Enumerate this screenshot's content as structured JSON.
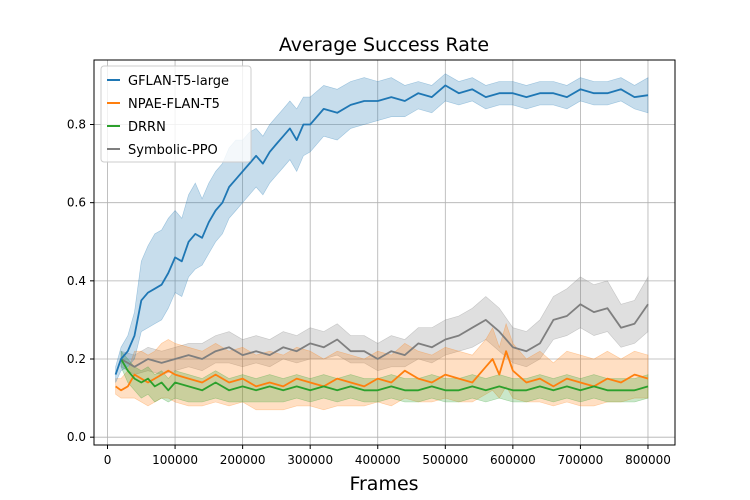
{
  "chart_data": {
    "type": "line",
    "title": "Average Success Rate",
    "xlabel": "Frames",
    "ylabel": "",
    "xlim": [
      -20000,
      840000
    ],
    "ylim": [
      -0.02,
      0.965
    ],
    "xticks": [
      0,
      100000,
      200000,
      300000,
      400000,
      500000,
      600000,
      700000,
      800000
    ],
    "yticks": [
      0.0,
      0.2,
      0.4,
      0.6,
      0.8
    ],
    "xtick_labels": [
      "0",
      "100000",
      "200000",
      "300000",
      "400000",
      "500000",
      "600000",
      "700000",
      "800000"
    ],
    "ytick_labels": [
      "0.0",
      "0.2",
      "0.4",
      "0.6",
      "0.8"
    ],
    "grid": true,
    "legend_position": "top-left",
    "series": [
      {
        "name": "GFLAN-T5-large",
        "color": "#1f77b4",
        "x": [
          12000,
          20000,
          30000,
          40000,
          50000,
          60000,
          70000,
          80000,
          90000,
          100000,
          110000,
          120000,
          130000,
          140000,
          150000,
          160000,
          170000,
          180000,
          190000,
          200000,
          210000,
          220000,
          230000,
          240000,
          250000,
          260000,
          270000,
          280000,
          290000,
          300000,
          320000,
          340000,
          360000,
          380000,
          400000,
          420000,
          440000,
          460000,
          480000,
          500000,
          520000,
          540000,
          560000,
          580000,
          600000,
          620000,
          640000,
          660000,
          680000,
          700000,
          720000,
          740000,
          760000,
          780000,
          800000
        ],
        "y": [
          0.16,
          0.2,
          0.22,
          0.26,
          0.35,
          0.37,
          0.38,
          0.39,
          0.42,
          0.46,
          0.45,
          0.5,
          0.52,
          0.51,
          0.55,
          0.58,
          0.6,
          0.64,
          0.66,
          0.68,
          0.7,
          0.72,
          0.7,
          0.73,
          0.75,
          0.77,
          0.79,
          0.76,
          0.8,
          0.8,
          0.84,
          0.83,
          0.85,
          0.86,
          0.86,
          0.87,
          0.86,
          0.88,
          0.87,
          0.9,
          0.88,
          0.89,
          0.87,
          0.88,
          0.88,
          0.87,
          0.88,
          0.88,
          0.87,
          0.89,
          0.88,
          0.88,
          0.89,
          0.87,
          0.875
        ],
        "lower": [
          0.14,
          0.17,
          0.18,
          0.2,
          0.27,
          0.28,
          0.29,
          0.3,
          0.33,
          0.37,
          0.36,
          0.41,
          0.43,
          0.44,
          0.47,
          0.5,
          0.52,
          0.56,
          0.58,
          0.6,
          0.62,
          0.64,
          0.62,
          0.65,
          0.67,
          0.69,
          0.71,
          0.68,
          0.72,
          0.73,
          0.77,
          0.76,
          0.79,
          0.8,
          0.81,
          0.82,
          0.82,
          0.84,
          0.83,
          0.86,
          0.85,
          0.86,
          0.84,
          0.85,
          0.85,
          0.84,
          0.85,
          0.85,
          0.84,
          0.86,
          0.85,
          0.85,
          0.86,
          0.84,
          0.83
        ],
        "upper": [
          0.18,
          0.23,
          0.26,
          0.32,
          0.45,
          0.49,
          0.52,
          0.53,
          0.56,
          0.58,
          0.56,
          0.62,
          0.65,
          0.61,
          0.65,
          0.68,
          0.7,
          0.74,
          0.76,
          0.76,
          0.78,
          0.79,
          0.77,
          0.8,
          0.82,
          0.84,
          0.86,
          0.84,
          0.87,
          0.87,
          0.9,
          0.89,
          0.91,
          0.92,
          0.91,
          0.92,
          0.9,
          0.91,
          0.9,
          0.93,
          0.91,
          0.92,
          0.9,
          0.91,
          0.91,
          0.9,
          0.91,
          0.91,
          0.9,
          0.92,
          0.91,
          0.91,
          0.92,
          0.9,
          0.92
        ]
      },
      {
        "name": "NPAE-FLAN-T5",
        "color": "#ff7f0e",
        "x": [
          12000,
          20000,
          30000,
          40000,
          50000,
          60000,
          70000,
          80000,
          90000,
          100000,
          120000,
          140000,
          160000,
          180000,
          200000,
          220000,
          240000,
          260000,
          280000,
          300000,
          320000,
          340000,
          360000,
          380000,
          400000,
          420000,
          440000,
          460000,
          480000,
          500000,
          520000,
          540000,
          560000,
          570000,
          580000,
          590000,
          600000,
          620000,
          640000,
          660000,
          680000,
          700000,
          720000,
          740000,
          760000,
          780000,
          800000
        ],
        "y": [
          0.13,
          0.12,
          0.13,
          0.16,
          0.15,
          0.14,
          0.15,
          0.16,
          0.17,
          0.16,
          0.15,
          0.14,
          0.16,
          0.14,
          0.15,
          0.13,
          0.14,
          0.13,
          0.15,
          0.14,
          0.13,
          0.15,
          0.14,
          0.13,
          0.15,
          0.14,
          0.17,
          0.15,
          0.14,
          0.16,
          0.15,
          0.14,
          0.18,
          0.2,
          0.16,
          0.22,
          0.17,
          0.14,
          0.15,
          0.13,
          0.15,
          0.14,
          0.13,
          0.15,
          0.14,
          0.16,
          0.15
        ],
        "lower": [
          0.11,
          0.1,
          0.1,
          0.1,
          0.09,
          0.08,
          0.09,
          0.1,
          0.1,
          0.09,
          0.08,
          0.08,
          0.09,
          0.08,
          0.09,
          0.07,
          0.07,
          0.07,
          0.08,
          0.08,
          0.07,
          0.08,
          0.08,
          0.08,
          0.09,
          0.08,
          0.1,
          0.09,
          0.09,
          0.1,
          0.09,
          0.09,
          0.11,
          0.12,
          0.1,
          0.13,
          0.1,
          0.09,
          0.09,
          0.08,
          0.09,
          0.08,
          0.08,
          0.09,
          0.09,
          0.1,
          0.1
        ],
        "upper": [
          0.15,
          0.15,
          0.17,
          0.22,
          0.22,
          0.21,
          0.22,
          0.24,
          0.25,
          0.24,
          0.23,
          0.22,
          0.24,
          0.22,
          0.23,
          0.21,
          0.22,
          0.21,
          0.23,
          0.22,
          0.2,
          0.22,
          0.21,
          0.2,
          0.22,
          0.21,
          0.24,
          0.22,
          0.21,
          0.23,
          0.22,
          0.21,
          0.25,
          0.28,
          0.23,
          0.29,
          0.24,
          0.2,
          0.22,
          0.19,
          0.22,
          0.21,
          0.2,
          0.22,
          0.2,
          0.22,
          0.21
        ]
      },
      {
        "name": "DRRN",
        "color": "#2ca02c",
        "x": [
          20000,
          30000,
          40000,
          50000,
          60000,
          70000,
          80000,
          90000,
          100000,
          120000,
          140000,
          160000,
          180000,
          200000,
          220000,
          240000,
          260000,
          280000,
          300000,
          320000,
          340000,
          360000,
          380000,
          400000,
          420000,
          440000,
          460000,
          480000,
          500000,
          520000,
          540000,
          560000,
          580000,
          600000,
          620000,
          640000,
          660000,
          680000,
          700000,
          720000,
          740000,
          760000,
          780000,
          800000
        ],
        "y": [
          0.2,
          0.17,
          0.15,
          0.14,
          0.15,
          0.13,
          0.14,
          0.12,
          0.14,
          0.13,
          0.12,
          0.14,
          0.12,
          0.13,
          0.12,
          0.13,
          0.12,
          0.13,
          0.12,
          0.13,
          0.12,
          0.13,
          0.12,
          0.12,
          0.13,
          0.12,
          0.12,
          0.13,
          0.12,
          0.12,
          0.13,
          0.12,
          0.13,
          0.12,
          0.12,
          0.13,
          0.12,
          0.13,
          0.12,
          0.13,
          0.12,
          0.12,
          0.12,
          0.13
        ],
        "lower": [
          0.18,
          0.14,
          0.12,
          0.1,
          0.11,
          0.09,
          0.1,
          0.09,
          0.1,
          0.09,
          0.09,
          0.1,
          0.09,
          0.09,
          0.09,
          0.09,
          0.09,
          0.1,
          0.09,
          0.1,
          0.09,
          0.1,
          0.09,
          0.09,
          0.1,
          0.09,
          0.09,
          0.1,
          0.09,
          0.09,
          0.1,
          0.09,
          0.1,
          0.09,
          0.09,
          0.1,
          0.09,
          0.1,
          0.09,
          0.1,
          0.09,
          0.09,
          0.09,
          0.1
        ],
        "upper": [
          0.22,
          0.2,
          0.18,
          0.17,
          0.18,
          0.16,
          0.17,
          0.15,
          0.17,
          0.16,
          0.15,
          0.17,
          0.15,
          0.16,
          0.15,
          0.16,
          0.15,
          0.16,
          0.15,
          0.16,
          0.15,
          0.16,
          0.15,
          0.15,
          0.16,
          0.15,
          0.15,
          0.16,
          0.15,
          0.15,
          0.16,
          0.15,
          0.16,
          0.15,
          0.15,
          0.16,
          0.15,
          0.16,
          0.15,
          0.16,
          0.15,
          0.15,
          0.15,
          0.16
        ]
      },
      {
        "name": "Symbolic-PPO",
        "color": "#7f7f7f",
        "x": [
          20000,
          40000,
          60000,
          80000,
          100000,
          120000,
          140000,
          160000,
          180000,
          200000,
          220000,
          240000,
          260000,
          280000,
          300000,
          320000,
          340000,
          360000,
          380000,
          400000,
          420000,
          440000,
          460000,
          480000,
          500000,
          520000,
          540000,
          560000,
          580000,
          600000,
          620000,
          640000,
          660000,
          680000,
          700000,
          720000,
          740000,
          760000,
          780000,
          800000
        ],
        "y": [
          0.2,
          0.18,
          0.2,
          0.19,
          0.2,
          0.21,
          0.2,
          0.22,
          0.23,
          0.21,
          0.22,
          0.21,
          0.23,
          0.22,
          0.24,
          0.23,
          0.25,
          0.22,
          0.22,
          0.2,
          0.22,
          0.21,
          0.24,
          0.23,
          0.25,
          0.26,
          0.28,
          0.3,
          0.27,
          0.23,
          0.22,
          0.24,
          0.3,
          0.31,
          0.34,
          0.32,
          0.33,
          0.28,
          0.29,
          0.34
        ],
        "lower": [
          0.18,
          0.16,
          0.17,
          0.16,
          0.17,
          0.18,
          0.17,
          0.19,
          0.19,
          0.18,
          0.19,
          0.18,
          0.2,
          0.19,
          0.2,
          0.2,
          0.21,
          0.19,
          0.19,
          0.17,
          0.18,
          0.18,
          0.2,
          0.19,
          0.21,
          0.22,
          0.23,
          0.25,
          0.22,
          0.19,
          0.18,
          0.2,
          0.25,
          0.26,
          0.28,
          0.26,
          0.27,
          0.23,
          0.24,
          0.27
        ],
        "upper": [
          0.22,
          0.21,
          0.23,
          0.22,
          0.23,
          0.24,
          0.24,
          0.26,
          0.27,
          0.25,
          0.26,
          0.25,
          0.27,
          0.26,
          0.28,
          0.27,
          0.29,
          0.26,
          0.26,
          0.24,
          0.26,
          0.25,
          0.28,
          0.28,
          0.3,
          0.31,
          0.33,
          0.36,
          0.33,
          0.28,
          0.27,
          0.3,
          0.36,
          0.38,
          0.41,
          0.39,
          0.4,
          0.34,
          0.35,
          0.41
        ]
      }
    ]
  }
}
